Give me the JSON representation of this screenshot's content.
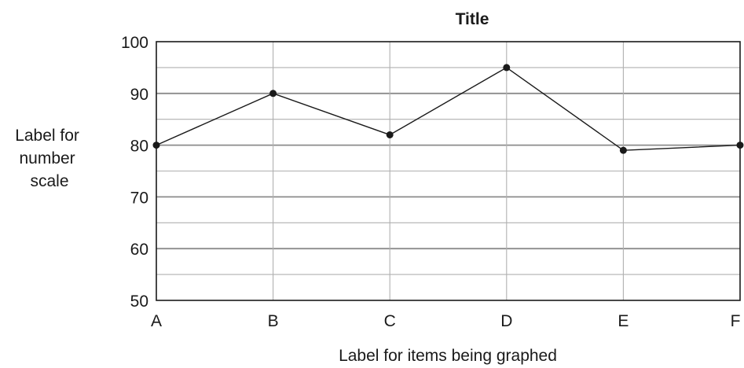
{
  "chart_data": {
    "type": "line",
    "title": "Title",
    "xlabel": "Label for items being graphed",
    "ylabel": [
      "Label for",
      "number",
      "scale"
    ],
    "categories": [
      "A",
      "B",
      "C",
      "D",
      "E",
      "F"
    ],
    "series": [
      {
        "values": [
          80,
          90,
          82,
          95,
          79,
          80
        ]
      }
    ],
    "ylim": [
      50,
      100
    ],
    "yticks": [
      "50",
      "60",
      "70",
      "80",
      "90",
      "100"
    ],
    "minor_gridlines": true,
    "grid": true,
    "legend": "none",
    "colors": {
      "line": "#1a1a1a",
      "marker": "#1a1a1a",
      "major_grid": "#8c8c8c",
      "minor_grid": "#b0b0b0",
      "frame": "#1a1a1a"
    }
  }
}
